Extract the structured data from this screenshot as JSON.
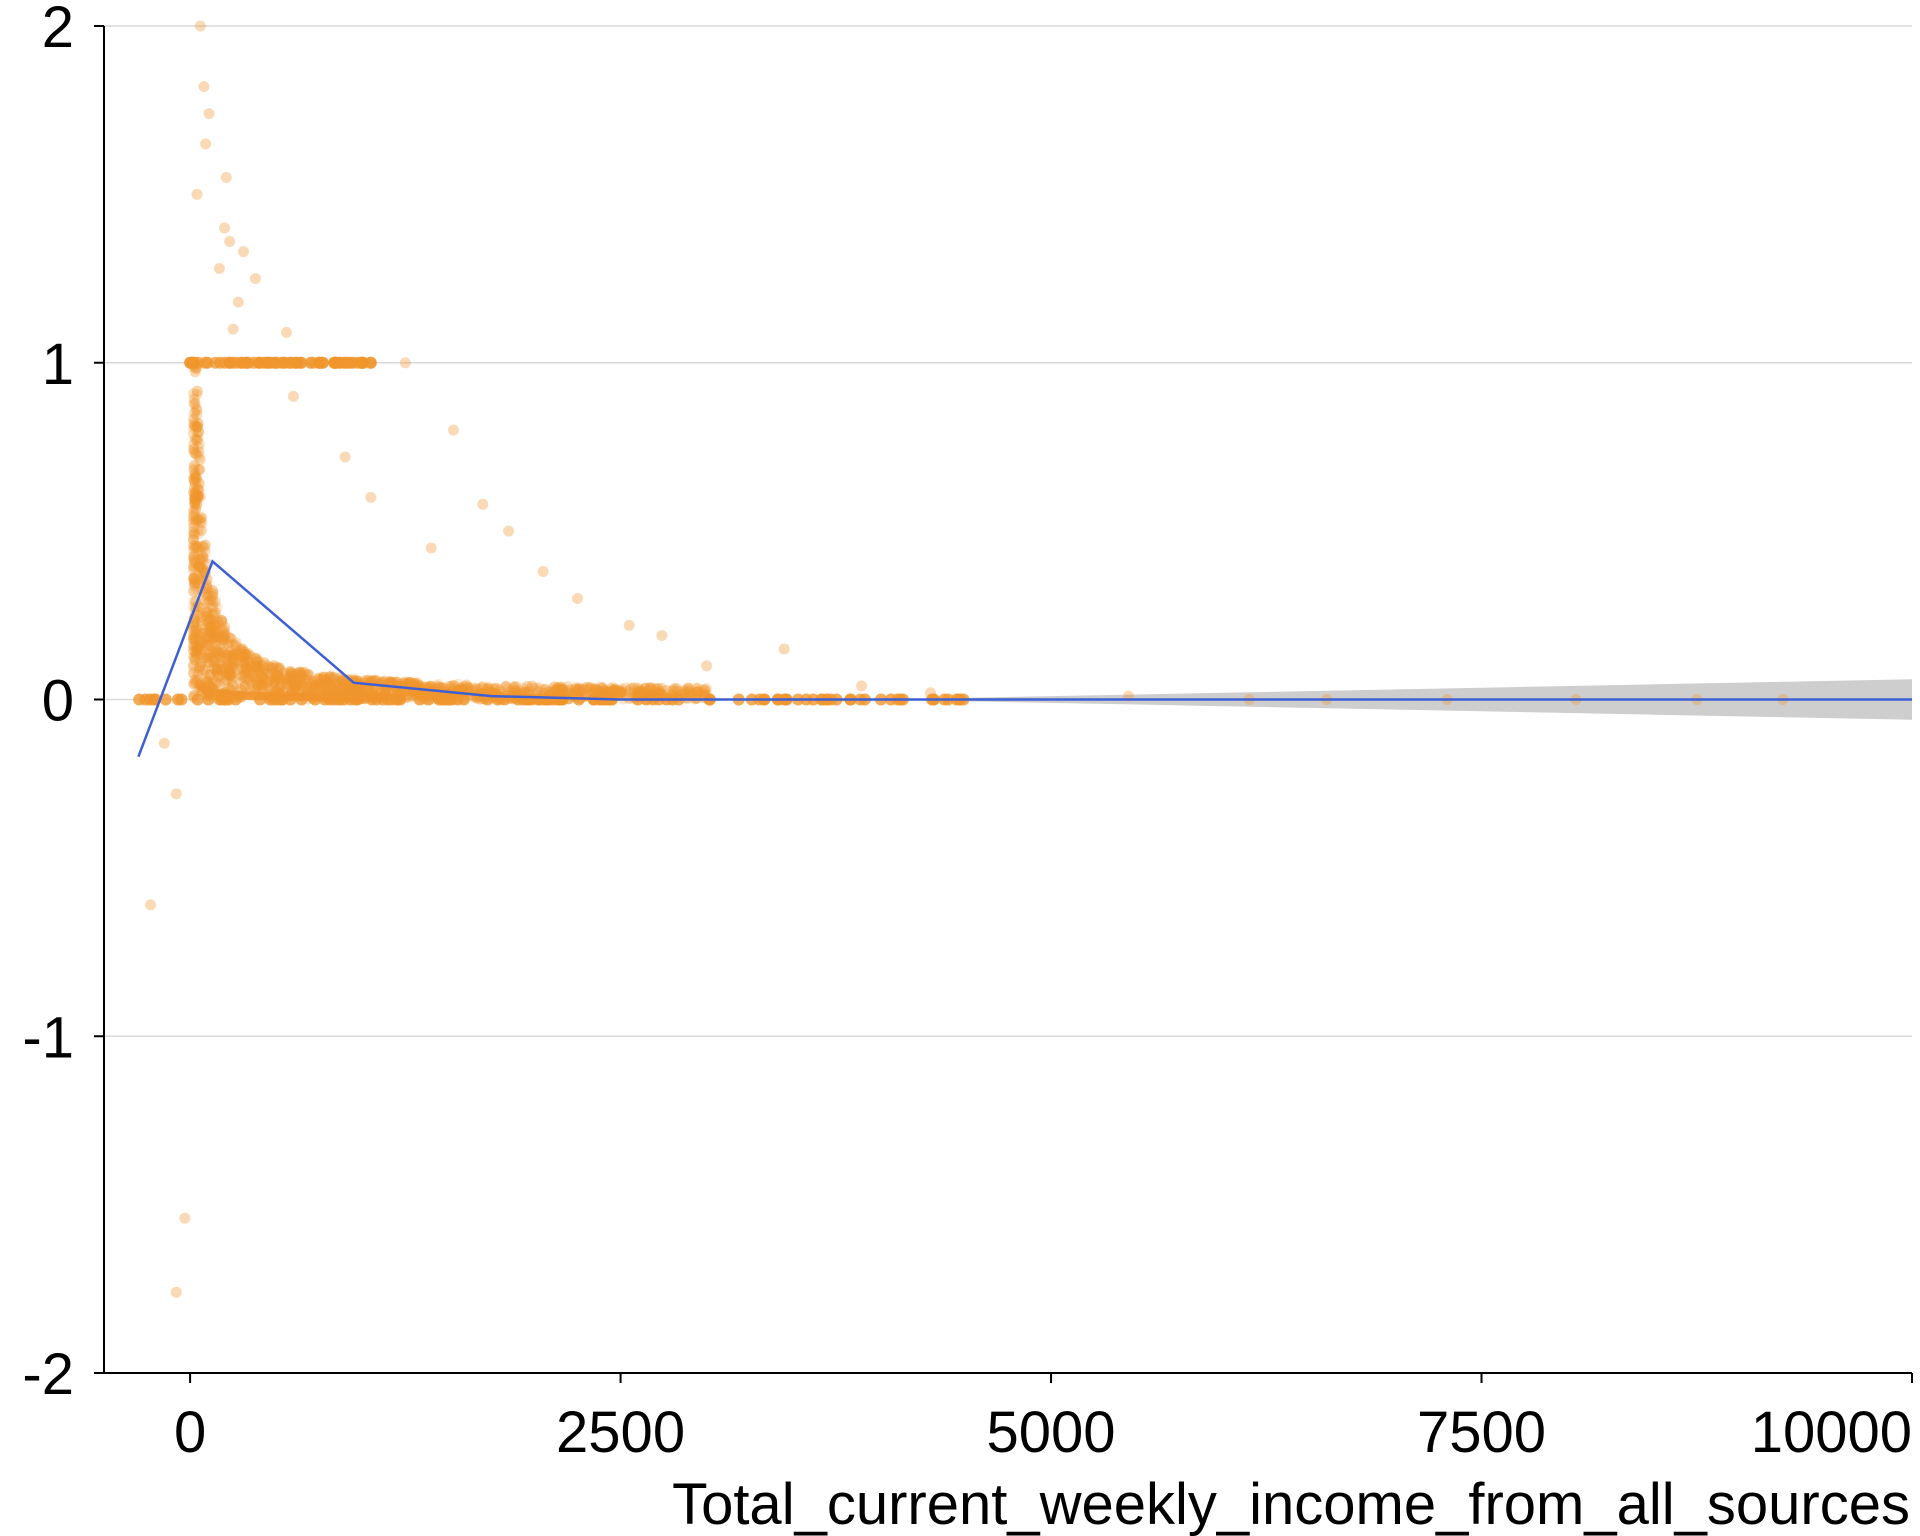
{
  "chart_data": {
    "type": "scatter",
    "title": "",
    "xlabel": "Total_current_weekly_income_from_all_sources",
    "ylabel": "",
    "xlim": [
      -500,
      10000
    ],
    "ylim": [
      -2,
      2
    ],
    "x_ticks": [
      {
        "value": 0,
        "label": "0"
      },
      {
        "value": 2500,
        "label": "2500"
      },
      {
        "value": 5000,
        "label": "5000"
      },
      {
        "value": 7500,
        "label": "7500"
      },
      {
        "value": 10000,
        "label": "10000"
      }
    ],
    "y_ticks": [
      {
        "value": 2,
        "label": "2"
      },
      {
        "value": 1,
        "label": "1"
      },
      {
        "value": 0,
        "label": "0"
      },
      {
        "value": -1,
        "label": "-1"
      },
      {
        "value": -2,
        "label": "-2"
      }
    ],
    "grid": {
      "horizontal": true,
      "vertical": false
    },
    "legend": "none",
    "colors": {
      "points": "#f0962d",
      "trend": "#3d5fd6",
      "band": "#bdbdbd",
      "grid": "#d9d9d9",
      "axis": "#000000"
    },
    "trend_line": {
      "x": [
        -300,
        130,
        950,
        1750,
        2500,
        4000,
        5000,
        7500,
        10000
      ],
      "y": [
        -0.17,
        0.41,
        0.05,
        0.01,
        0.0,
        0.0,
        0.0,
        0.0,
        0.0
      ]
    },
    "confidence_band": {
      "x": [
        4500,
        6000,
        7500,
        8500,
        10000
      ],
      "upper": [
        0.005,
        0.02,
        0.035,
        0.045,
        0.06
      ],
      "lower": [
        -0.005,
        -0.02,
        -0.035,
        -0.045,
        -0.06
      ]
    },
    "scatter_points": [
      {
        "x": 60,
        "y": 2.0
      },
      {
        "x": 80,
        "y": 1.82
      },
      {
        "x": 110,
        "y": 1.74
      },
      {
        "x": 90,
        "y": 1.65
      },
      {
        "x": 40,
        "y": 1.5
      },
      {
        "x": 210,
        "y": 1.55
      },
      {
        "x": 200,
        "y": 1.4
      },
      {
        "x": 230,
        "y": 1.36
      },
      {
        "x": 170,
        "y": 1.28
      },
      {
        "x": 310,
        "y": 1.33
      },
      {
        "x": 380,
        "y": 1.25
      },
      {
        "x": 280,
        "y": 1.18
      },
      {
        "x": 250,
        "y": 1.1
      },
      {
        "x": 560,
        "y": 1.09
      },
      {
        "x": 1250,
        "y": 1.0
      },
      {
        "x": 1530,
        "y": 0.8
      },
      {
        "x": 1700,
        "y": 0.58
      },
      {
        "x": 1850,
        "y": 0.5
      },
      {
        "x": 2050,
        "y": 0.38
      },
      {
        "x": 2250,
        "y": 0.3
      },
      {
        "x": 2550,
        "y": 0.22
      },
      {
        "x": 2740,
        "y": 0.19
      },
      {
        "x": 3000,
        "y": 0.1
      },
      {
        "x": 3450,
        "y": 0.15
      },
      {
        "x": 3900,
        "y": 0.04
      },
      {
        "x": 4300,
        "y": 0.02
      },
      {
        "x": 5450,
        "y": 0.01
      },
      {
        "x": 6150,
        "y": 0.0
      },
      {
        "x": 6600,
        "y": 0.0
      },
      {
        "x": 7300,
        "y": 0.0
      },
      {
        "x": 8050,
        "y": 0.0
      },
      {
        "x": 8750,
        "y": 0.0
      },
      {
        "x": 9250,
        "y": 0.0
      },
      {
        "x": -150,
        "y": -0.13
      },
      {
        "x": -80,
        "y": -0.28
      },
      {
        "x": -230,
        "y": -0.61
      },
      {
        "x": -30,
        "y": -1.54
      },
      {
        "x": -80,
        "y": -1.76
      },
      {
        "x": 600,
        "y": 0.9
      },
      {
        "x": 900,
        "y": 0.72
      },
      {
        "x": 1050,
        "y": 0.6
      },
      {
        "x": 1400,
        "y": 0.45
      }
    ],
    "dense_region": {
      "row_at_1": {
        "x_from": 0,
        "x_to": 1050,
        "y": 1.0
      },
      "row_at_0": {
        "x_from": -300,
        "x_to": 4500,
        "y": 0.0
      },
      "decay_envelope": {
        "scale_k": 40,
        "x_from": 20,
        "x_to": 3000
      }
    }
  }
}
